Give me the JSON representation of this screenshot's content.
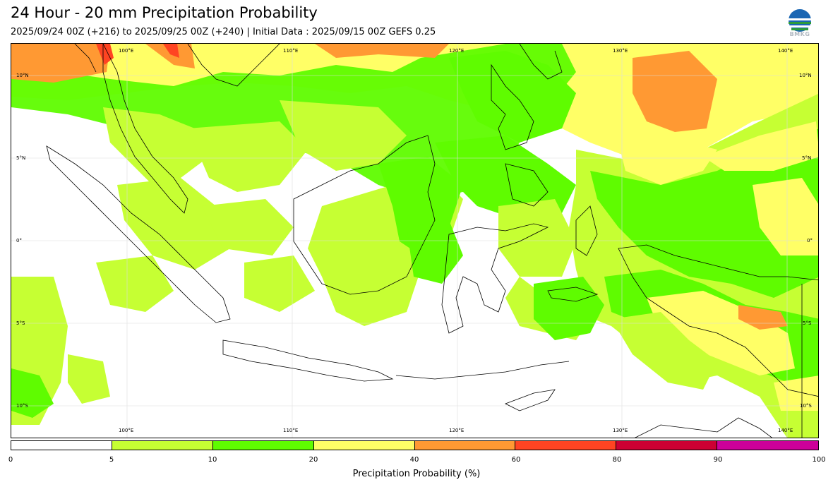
{
  "header": {
    "title": "24 Hour - 20 mm Precipitation Probability",
    "subtitle": "2025/09/24 00Z (+216) to 2025/09/25 00Z (+240) | Initial Data : 2025/09/15 00Z GEFS 0.25",
    "logo_text": "BMKG"
  },
  "map": {
    "lon_labels": [
      "100°E",
      "110°E",
      "120°E",
      "130°E",
      "140°E"
    ],
    "lat_labels": [
      "10°N",
      "5°N",
      "0°",
      "5°S",
      "10°S"
    ]
  },
  "colorbar": {
    "label": "Precipitation Probability (%)",
    "ticks": [
      "0",
      "5",
      "10",
      "20",
      "40",
      "60",
      "80",
      "90",
      "100"
    ],
    "colors": [
      "#ffffff",
      "#c6ff33",
      "#5ffc00",
      "#ffff66",
      "#ff9933",
      "#ff4422",
      "#cc0033",
      "#cc0099"
    ]
  }
}
